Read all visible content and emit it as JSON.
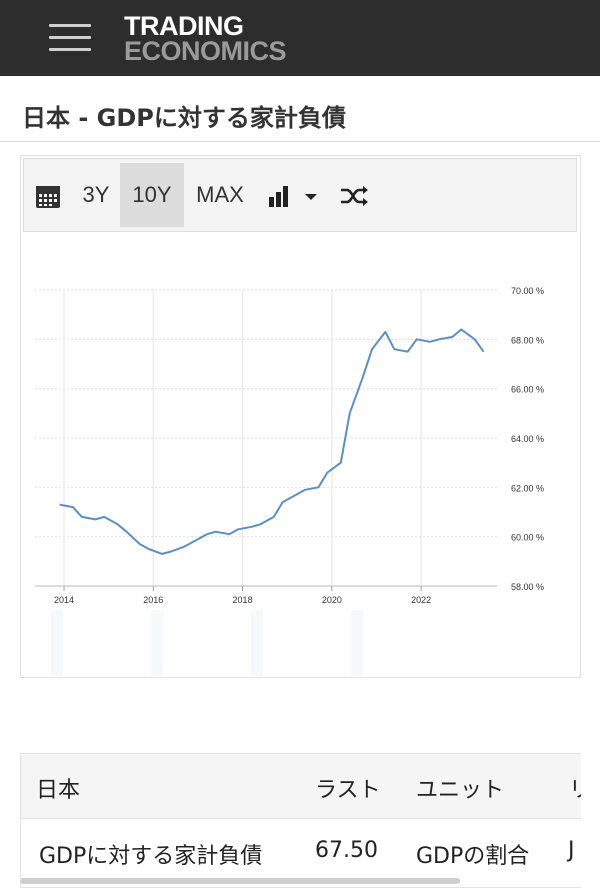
{
  "header": {
    "logo_line1": "TRADING",
    "logo_line2": "ECONOMICS"
  },
  "page": {
    "title": "日本 - GDPに対する家計負債"
  },
  "toolbar": {
    "range_3y": "3Y",
    "range_10y": "10Y",
    "range_max": "MAX"
  },
  "chart_data": {
    "type": "line",
    "title": "",
    "xlabel": "",
    "ylabel": "",
    "ylim": [
      58,
      70
    ],
    "y_ticks": [
      "58.00 %",
      "60.00 %",
      "62.00 %",
      "64.00 %",
      "66.00 %",
      "68.00 %",
      "70.00 %"
    ],
    "y_tick_values": [
      58,
      60,
      62,
      64,
      66,
      68,
      70
    ],
    "x_ticks": [
      "2014",
      "2016",
      "2018",
      "2020",
      "2022"
    ],
    "x_tick_values": [
      2014,
      2016,
      2018,
      2020,
      2022
    ],
    "grid": true,
    "line_color": "#5b8fc3",
    "series": [
      {
        "x": [
          2013.9,
          2014.2,
          2014.4,
          2014.7,
          2014.9,
          2015.2,
          2015.4,
          2015.7,
          2015.9,
          2016.2,
          2016.4,
          2016.7,
          2016.9,
          2017.2,
          2017.4,
          2017.7,
          2017.9,
          2018.2,
          2018.4,
          2018.7,
          2018.9,
          2019.2,
          2019.4,
          2019.7,
          2019.9,
          2020.2,
          2020.4,
          2020.7,
          2020.9,
          2021.2,
          2021.4,
          2021.7,
          2021.9,
          2022.2,
          2022.4,
          2022.7,
          2022.9,
          2023.2,
          2023.4
        ],
        "values": [
          61.3,
          61.2,
          60.8,
          60.7,
          60.8,
          60.5,
          60.2,
          59.7,
          59.5,
          59.3,
          59.4,
          59.6,
          59.8,
          60.1,
          60.2,
          60.1,
          60.3,
          60.4,
          60.5,
          60.8,
          61.4,
          61.7,
          61.9,
          62.0,
          62.6,
          63.0,
          65.0,
          66.5,
          67.6,
          68.3,
          67.6,
          67.5,
          68.0,
          67.9,
          68.0,
          68.1,
          68.4,
          68.0,
          67.5
        ]
      }
    ]
  },
  "table": {
    "headers": [
      "日本",
      "ラスト",
      "ユニット",
      "リ"
    ],
    "row": [
      "GDPに対する家計負債",
      "67.50",
      "GDPの割合",
      "J"
    ]
  }
}
